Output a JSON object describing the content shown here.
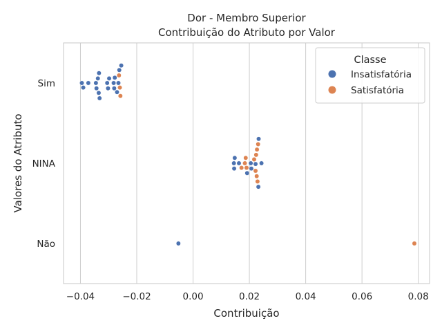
{
  "chart_data": {
    "type": "scatter",
    "subtype": "swarm",
    "title": "Dor - Membro Superior",
    "subtitle": "Contribuição do Atributo por Valor",
    "xlabel": "Contribuição",
    "ylabel": "Valores do Atributo",
    "xlim": [
      -0.046,
      0.084
    ],
    "xticks": [
      -0.04,
      -0.02,
      0.0,
      0.02,
      0.04,
      0.06,
      0.08
    ],
    "xtick_labels": [
      "−0.04",
      "−0.02",
      "0.00",
      "0.02",
      "0.04",
      "0.06",
      "0.08"
    ],
    "categories": [
      "Sim",
      "NINA",
      "Não"
    ],
    "grid": true,
    "legend": {
      "title": "Classe",
      "position": "top-right",
      "entries": [
        {
          "name": "Insatisfatória",
          "color": "#4c72b0"
        },
        {
          "name": "Satisfatória",
          "color": "#dd8452"
        }
      ]
    },
    "series": [
      {
        "name": "Insatisfatória",
        "color": "#4c72b0",
        "points": [
          {
            "x": -0.0395,
            "y": "Sim"
          },
          {
            "x": -0.039,
            "y": "Sim"
          },
          {
            "x": -0.0372,
            "y": "Sim"
          },
          {
            "x": -0.0345,
            "y": "Sim"
          },
          {
            "x": -0.0343,
            "y": "Sim"
          },
          {
            "x": -0.0338,
            "y": "Sim"
          },
          {
            "x": -0.0335,
            "y": "Sim"
          },
          {
            "x": -0.0334,
            "y": "Sim"
          },
          {
            "x": -0.0332,
            "y": "Sim"
          },
          {
            "x": -0.0305,
            "y": "Sim"
          },
          {
            "x": -0.0302,
            "y": "Sim"
          },
          {
            "x": -0.0298,
            "y": "Sim"
          },
          {
            "x": -0.0282,
            "y": "Sim"
          },
          {
            "x": -0.028,
            "y": "Sim"
          },
          {
            "x": -0.0278,
            "y": "Sim"
          },
          {
            "x": -0.027,
            "y": "Sim"
          },
          {
            "x": -0.0265,
            "y": "Sim"
          },
          {
            "x": -0.0262,
            "y": "Sim"
          },
          {
            "x": -0.0255,
            "y": "Sim"
          },
          {
            "x": 0.0145,
            "y": "NINA"
          },
          {
            "x": 0.0146,
            "y": "NINA"
          },
          {
            "x": 0.0148,
            "y": "NINA"
          },
          {
            "x": 0.0163,
            "y": "NINA"
          },
          {
            "x": 0.0192,
            "y": "NINA"
          },
          {
            "x": 0.0205,
            "y": "NINA"
          },
          {
            "x": 0.0207,
            "y": "NINA"
          },
          {
            "x": 0.0222,
            "y": "NINA"
          },
          {
            "x": 0.0232,
            "y": "NINA"
          },
          {
            "x": 0.0233,
            "y": "NINA"
          },
          {
            "x": 0.0243,
            "y": "NINA"
          },
          {
            "x": -0.0052,
            "y": "Não"
          }
        ]
      },
      {
        "name": "Satisfatória",
        "color": "#dd8452",
        "points": [
          {
            "x": -0.0258,
            "y": "Sim"
          },
          {
            "x": -0.026,
            "y": "Sim"
          },
          {
            "x": -0.0263,
            "y": "Sim"
          },
          {
            "x": 0.0172,
            "y": "NINA"
          },
          {
            "x": 0.0184,
            "y": "NINA"
          },
          {
            "x": 0.0187,
            "y": "NINA"
          },
          {
            "x": 0.019,
            "y": "NINA"
          },
          {
            "x": 0.0217,
            "y": "NINA"
          },
          {
            "x": 0.0222,
            "y": "NINA"
          },
          {
            "x": 0.0224,
            "y": "NINA"
          },
          {
            "x": 0.0226,
            "y": "NINA"
          },
          {
            "x": 0.0227,
            "y": "NINA"
          },
          {
            "x": 0.0229,
            "y": "NINA"
          },
          {
            "x": 0.0231,
            "y": "NINA"
          },
          {
            "x": 0.0786,
            "y": "Não"
          }
        ]
      }
    ]
  }
}
